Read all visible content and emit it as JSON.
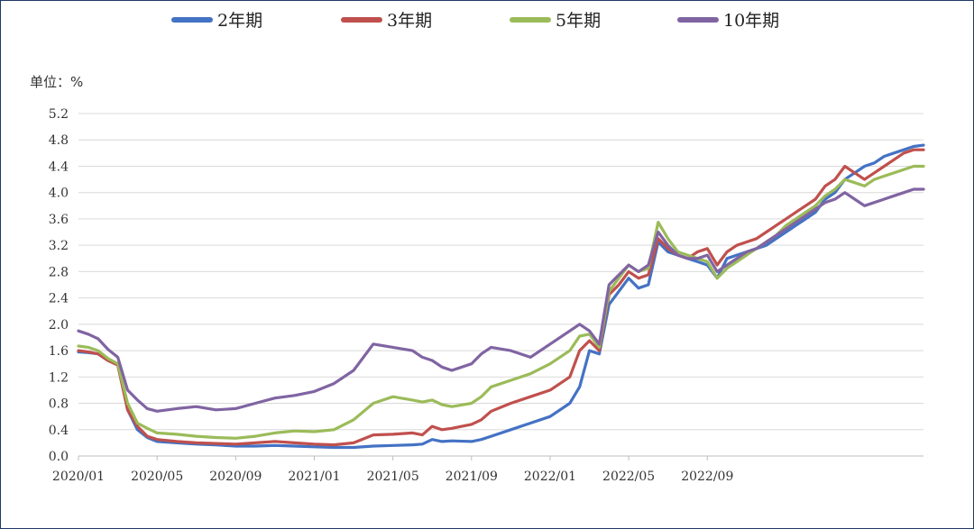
{
  "chart_data": {
    "type": "line",
    "unit_label": "单位：%",
    "ylim": [
      0,
      5.2
    ],
    "y_ticks": [
      "0.0",
      "0.4",
      "0.8",
      "1.2",
      "1.6",
      "2.0",
      "2.4",
      "2.8",
      "3.2",
      "3.6",
      "4.0",
      "4.4",
      "4.8",
      "5.2"
    ],
    "x_ticks": [
      "2020/01",
      "2020/05",
      "2020/09",
      "2021/01",
      "2021/05",
      "2021/09",
      "2022/01",
      "2022/05",
      "2022/09"
    ],
    "grid": true,
    "legend_position": "top",
    "series": [
      {
        "name": "2年期",
        "color": "#4472c4",
        "x": [
          0,
          0.5,
          1,
          1.5,
          2,
          2.5,
          3,
          3.5,
          4,
          5,
          6,
          7,
          8,
          9,
          10,
          11,
          12,
          13,
          14,
          15,
          16,
          17,
          17.5,
          18,
          18.5,
          19,
          20,
          20.5,
          21,
          22,
          23,
          24,
          25,
          25.5,
          26,
          26.5,
          27,
          27.5,
          28,
          28.5,
          29,
          29.5,
          30,
          30.5,
          31,
          31.5,
          32,
          32.5,
          33,
          33.5,
          34,
          34.5,
          35,
          35.5,
          36,
          36.5,
          37,
          37.5,
          38,
          38.5,
          39,
          39.5,
          40,
          40.5,
          41,
          41.5,
          42,
          42.5,
          43
        ],
        "values": [
          1.58,
          1.57,
          1.55,
          1.45,
          1.4,
          0.7,
          0.4,
          0.28,
          0.22,
          0.2,
          0.18,
          0.17,
          0.15,
          0.15,
          0.16,
          0.15,
          0.14,
          0.13,
          0.13,
          0.15,
          0.16,
          0.17,
          0.18,
          0.25,
          0.22,
          0.23,
          0.22,
          0.25,
          0.3,
          0.4,
          0.5,
          0.6,
          0.8,
          1.05,
          1.6,
          1.55,
          2.3,
          2.5,
          2.7,
          2.55,
          2.6,
          3.25,
          3.1,
          3.05,
          3.0,
          2.95,
          2.9,
          2.7,
          3.0,
          3.05,
          3.1,
          3.15,
          3.2,
          3.3,
          3.4,
          3.5,
          3.6,
          3.7,
          3.9,
          4.0,
          4.2,
          4.3,
          4.4,
          4.45,
          4.55,
          4.6,
          4.65,
          4.7,
          4.72
        ]
      },
      {
        "name": "3年期",
        "color": "#c0504d",
        "x": [
          0,
          0.5,
          1,
          1.5,
          2,
          2.5,
          3,
          3.5,
          4,
          5,
          6,
          7,
          8,
          9,
          10,
          11,
          12,
          13,
          14,
          15,
          16,
          17,
          17.5,
          18,
          18.5,
          19,
          20,
          20.5,
          21,
          22,
          23,
          24,
          25,
          25.5,
          26,
          26.5,
          27,
          27.5,
          28,
          28.5,
          29,
          29.5,
          30,
          30.5,
          31,
          31.5,
          32,
          32.5,
          33,
          33.5,
          34,
          34.5,
          35,
          35.5,
          36,
          36.5,
          37,
          37.5,
          38,
          38.5,
          39,
          39.5,
          40,
          40.5,
          41,
          41.5,
          42,
          42.5,
          43
        ],
        "values": [
          1.6,
          1.58,
          1.55,
          1.45,
          1.38,
          0.7,
          0.45,
          0.3,
          0.25,
          0.22,
          0.2,
          0.19,
          0.18,
          0.2,
          0.22,
          0.2,
          0.18,
          0.17,
          0.2,
          0.32,
          0.33,
          0.35,
          0.32,
          0.45,
          0.4,
          0.42,
          0.48,
          0.55,
          0.68,
          0.8,
          0.9,
          1.0,
          1.2,
          1.6,
          1.75,
          1.6,
          2.45,
          2.6,
          2.8,
          2.7,
          2.75,
          3.3,
          3.15,
          3.05,
          3.0,
          3.1,
          3.15,
          2.9,
          3.1,
          3.2,
          3.25,
          3.3,
          3.4,
          3.5,
          3.6,
          3.7,
          3.8,
          3.9,
          4.1,
          4.2,
          4.4,
          4.3,
          4.2,
          4.3,
          4.4,
          4.5,
          4.6,
          4.65,
          4.65
        ]
      },
      {
        "name": "5年期",
        "color": "#9bbb59",
        "x": [
          0,
          0.5,
          1,
          1.5,
          2,
          2.5,
          3,
          3.5,
          4,
          5,
          6,
          7,
          8,
          9,
          10,
          11,
          12,
          13,
          14,
          15,
          16,
          17,
          17.5,
          18,
          18.5,
          19,
          20,
          20.5,
          21,
          22,
          23,
          24,
          25,
          25.5,
          26,
          26.5,
          27,
          27.5,
          28,
          28.5,
          29,
          29.5,
          30,
          30.5,
          31,
          31.5,
          32,
          32.5,
          33,
          33.5,
          34,
          34.5,
          35,
          35.5,
          36,
          36.5,
          37,
          37.5,
          38,
          38.5,
          39,
          39.5,
          40,
          40.5,
          41,
          41.5,
          42,
          42.5,
          43
        ],
        "values": [
          1.67,
          1.65,
          1.6,
          1.48,
          1.4,
          0.8,
          0.5,
          0.42,
          0.35,
          0.33,
          0.3,
          0.28,
          0.27,
          0.3,
          0.35,
          0.38,
          0.37,
          0.4,
          0.55,
          0.8,
          0.9,
          0.85,
          0.82,
          0.85,
          0.78,
          0.75,
          0.8,
          0.9,
          1.05,
          1.15,
          1.25,
          1.4,
          1.6,
          1.82,
          1.85,
          1.65,
          2.5,
          2.7,
          2.9,
          2.8,
          2.85,
          3.55,
          3.3,
          3.1,
          3.05,
          3.0,
          2.95,
          2.7,
          2.85,
          2.95,
          3.05,
          3.15,
          3.25,
          3.35,
          3.5,
          3.6,
          3.7,
          3.8,
          3.95,
          4.05,
          4.2,
          4.15,
          4.1,
          4.2,
          4.25,
          4.3,
          4.35,
          4.4,
          4.4
        ]
      },
      {
        "name": "10年期",
        "color": "#8064a2",
        "x": [
          0,
          0.5,
          1,
          1.5,
          2,
          2.5,
          3,
          3.5,
          4,
          5,
          6,
          7,
          8,
          9,
          10,
          11,
          12,
          13,
          14,
          15,
          16,
          17,
          17.5,
          18,
          18.5,
          19,
          20,
          20.5,
          21,
          22,
          23,
          24,
          25,
          25.5,
          26,
          26.5,
          27,
          27.5,
          28,
          28.5,
          29,
          29.5,
          30,
          30.5,
          31,
          31.5,
          32,
          32.5,
          33,
          33.5,
          34,
          34.5,
          35,
          35.5,
          36,
          36.5,
          37,
          37.5,
          38,
          38.5,
          39,
          39.5,
          40,
          40.5,
          41,
          41.5,
          42,
          42.5,
          43
        ],
        "values": [
          1.9,
          1.85,
          1.78,
          1.62,
          1.5,
          1.0,
          0.85,
          0.72,
          0.68,
          0.72,
          0.75,
          0.7,
          0.72,
          0.8,
          0.88,
          0.92,
          0.98,
          1.1,
          1.3,
          1.7,
          1.65,
          1.6,
          1.5,
          1.45,
          1.35,
          1.3,
          1.4,
          1.55,
          1.65,
          1.6,
          1.5,
          1.7,
          1.9,
          2.0,
          1.9,
          1.7,
          2.6,
          2.75,
          2.9,
          2.8,
          2.9,
          3.4,
          3.2,
          3.05,
          3.0,
          3.0,
          3.05,
          2.8,
          2.9,
          3.0,
          3.1,
          3.15,
          3.25,
          3.35,
          3.45,
          3.55,
          3.65,
          3.75,
          3.85,
          3.9,
          4.0,
          3.9,
          3.8,
          3.85,
          3.9,
          3.95,
          4.0,
          4.05,
          4.05
        ]
      }
    ]
  }
}
